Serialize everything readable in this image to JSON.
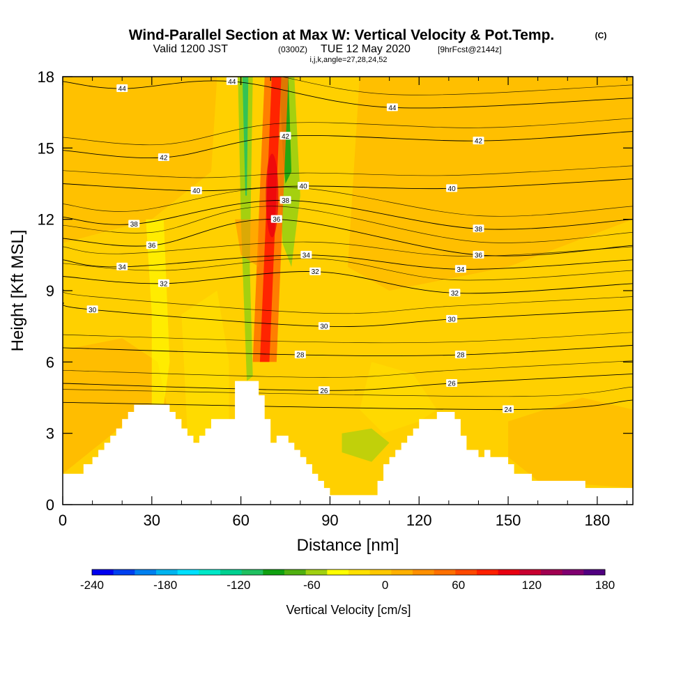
{
  "title": {
    "main": "Wind-Parallel Section at Max W: Vertical Velocity & Pot.Temp.",
    "copyright": "(C)",
    "valid_prefix": "Valid 1200 JST",
    "valid_zulu": "(0300Z)",
    "valid_date": "TUE 12 May 2020",
    "forecast": "[9hrFcst@2144z]",
    "grid_info": "i,j,k,angle=27,28,24,52"
  },
  "chart_data": {
    "type": "heatmap",
    "xlabel": "Distance [nm]",
    "ylabel": "Height [Kft MSL]",
    "xlim": [
      0,
      192
    ],
    "ylim": [
      0,
      18
    ],
    "xticks": [
      0,
      30,
      60,
      90,
      120,
      150,
      180
    ],
    "yticks": [
      0,
      3,
      6,
      9,
      12,
      15,
      18
    ],
    "colorbar": {
      "label": "Vertical Velocity [cm/s]",
      "min": -240,
      "max": 180,
      "tick_values": [
        -240,
        -180,
        -120,
        -60,
        0,
        60,
        120,
        180
      ],
      "colors": [
        "#0000f0",
        "#0040f0",
        "#0080f0",
        "#00b4f0",
        "#00e0ff",
        "#00e8c8",
        "#00d090",
        "#20c060",
        "#10a010",
        "#50b010",
        "#a0d010",
        "#ffff00",
        "#ffe000",
        "#ffc800",
        "#ffb000",
        "#ff9000",
        "#ff7000",
        "#ff4800",
        "#ff2000",
        "#e80010",
        "#c80030",
        "#a00050",
        "#800070",
        "#500080"
      ]
    },
    "terrain_profile": {
      "distance_nm": [
        0,
        7,
        7,
        10,
        10,
        12,
        12,
        14,
        14,
        16,
        16,
        18,
        18,
        20,
        20,
        22,
        22,
        24,
        24,
        26,
        26,
        28,
        28,
        36,
        36,
        38,
        38,
        40,
        40,
        42,
        42,
        44,
        44,
        46,
        46,
        48,
        48,
        50,
        50,
        58,
        58,
        66,
        66,
        68,
        68,
        70,
        70,
        72,
        72,
        76,
        76,
        78,
        78,
        80,
        80,
        82,
        82,
        84,
        84,
        86,
        86,
        88,
        88,
        90,
        90,
        92,
        92,
        94,
        94,
        96,
        96,
        104,
        104,
        106,
        106,
        108,
        108,
        110,
        110,
        112,
        112,
        114,
        114,
        116,
        116,
        118,
        118,
        120,
        120,
        126,
        126,
        132,
        132,
        134,
        134,
        136,
        136,
        140,
        140,
        142,
        142,
        144,
        144,
        150,
        150,
        152,
        152,
        154,
        154,
        158,
        158,
        162,
        162,
        170,
        170,
        176,
        176,
        186,
        186,
        192
      ],
      "height_kft": [
        1.3,
        1.3,
        1.7,
        1.7,
        2.0,
        2.0,
        2.3,
        2.3,
        2.6,
        2.6,
        2.9,
        2.9,
        3.2,
        3.2,
        3.6,
        3.6,
        3.9,
        3.9,
        4.2,
        4.2,
        4.2,
        4.2,
        4.2,
        4.2,
        3.9,
        3.9,
        3.6,
        3.6,
        3.2,
        3.2,
        2.9,
        2.9,
        2.6,
        2.6,
        2.9,
        2.9,
        3.2,
        3.2,
        3.6,
        3.6,
        5.2,
        5.2,
        4.6,
        4.6,
        3.6,
        3.6,
        2.6,
        2.6,
        2.9,
        2.9,
        2.6,
        2.6,
        2.3,
        2.3,
        2.0,
        2.0,
        1.7,
        1.7,
        1.3,
        1.3,
        1.0,
        1.0,
        0.7,
        0.7,
        0.4,
        0.4,
        0.4,
        0.4,
        0.4,
        0.4,
        0.4,
        0.4,
        0.4,
        0.4,
        1.0,
        1.0,
        1.7,
        1.7,
        2.0,
        2.0,
        2.3,
        2.3,
        2.6,
        2.6,
        2.9,
        2.9,
        3.2,
        3.2,
        3.6,
        3.6,
        3.9,
        3.9,
        3.6,
        3.6,
        2.9,
        2.9,
        2.3,
        2.3,
        2.0,
        2.0,
        2.3,
        2.3,
        2.0,
        2.0,
        1.7,
        1.7,
        1.3,
        1.3,
        1.3,
        1.3,
        1.0,
        1.0,
        1.0,
        1.0,
        1.0,
        1.0,
        0.7,
        0.7,
        0.7,
        0.7
      ]
    },
    "updraft_core": {
      "center_distance_nm": [
        68,
        69,
        70,
        71,
        72
      ],
      "height_kft": [
        6,
        9,
        12,
        15,
        18
      ],
      "max_vertical_velocity_cms": 120
    },
    "theta_contours": [
      {
        "level": 24,
        "label_positions": [
          [
            150,
            4.0
          ]
        ]
      },
      {
        "level": 26,
        "label_positions": [
          [
            88,
            4.8
          ],
          [
            131,
            5.1
          ]
        ]
      },
      {
        "level": 28,
        "label_positions": [
          [
            80,
            6.3
          ],
          [
            134,
            6.3
          ]
        ]
      },
      {
        "level": 30,
        "label_positions": [
          [
            10,
            8.2
          ],
          [
            88,
            7.5
          ],
          [
            131,
            7.8
          ]
        ]
      },
      {
        "level": 32,
        "label_positions": [
          [
            34,
            9.3
          ],
          [
            85,
            9.8
          ],
          [
            132,
            8.9
          ]
        ]
      },
      {
        "level": 34,
        "label_positions": [
          [
            20,
            10.0
          ],
          [
            82,
            10.5
          ],
          [
            134,
            9.9
          ]
        ]
      },
      {
        "level": 36,
        "label_positions": [
          [
            30,
            10.9
          ],
          [
            72,
            12.0
          ],
          [
            140,
            10.5
          ]
        ]
      },
      {
        "level": 38,
        "label_positions": [
          [
            24,
            11.8
          ],
          [
            75,
            12.8
          ],
          [
            140,
            11.6
          ]
        ]
      },
      {
        "level": 40,
        "label_positions": [
          [
            45,
            13.2
          ],
          [
            81,
            13.4
          ],
          [
            131,
            13.3
          ]
        ]
      },
      {
        "level": 42,
        "label_positions": [
          [
            34,
            14.6
          ],
          [
            75,
            15.5
          ],
          [
            140,
            15.3
          ]
        ]
      },
      {
        "level": 44,
        "label_positions": [
          [
            20,
            17.5
          ],
          [
            57,
            17.8
          ],
          [
            111,
            16.7
          ]
        ]
      }
    ]
  }
}
